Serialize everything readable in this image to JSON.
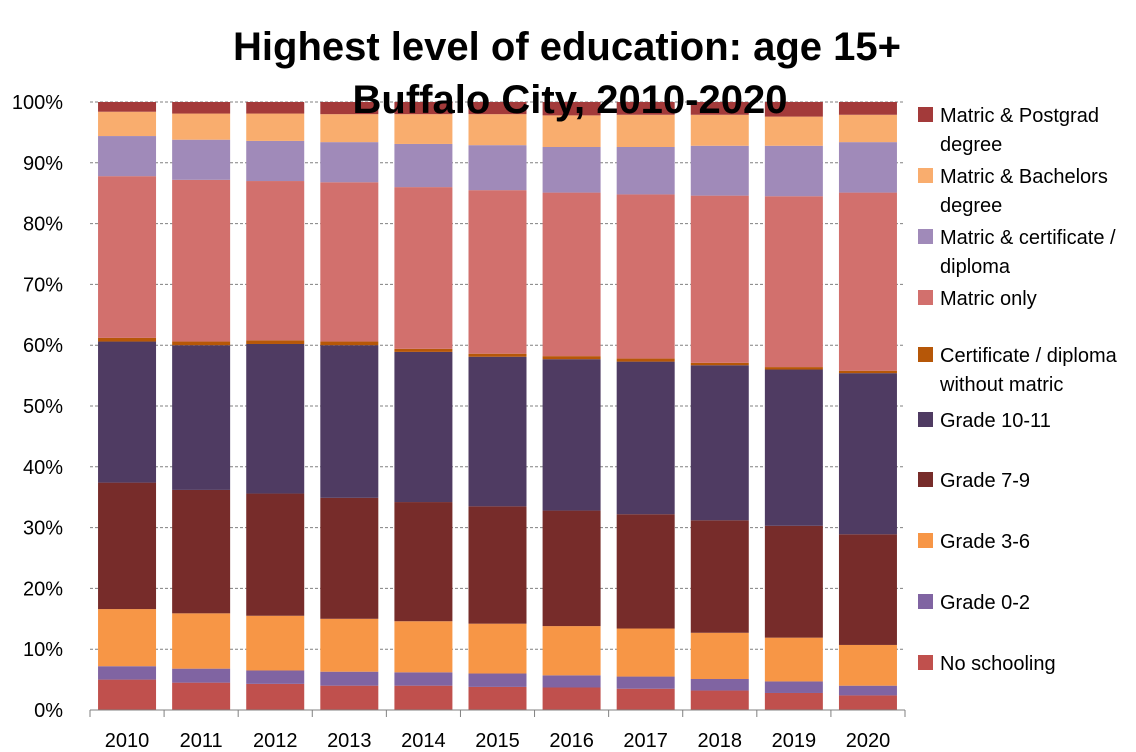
{
  "chart_data": {
    "type": "bar",
    "stacked": true,
    "percent": true,
    "title": "Highest level of education: age 15+",
    "subtitle": "Buffalo City, 2010-2020",
    "xlabel": "",
    "ylabel": "",
    "ylim": [
      0,
      100
    ],
    "y_ticks": [
      "0%",
      "10%",
      "20%",
      "30%",
      "40%",
      "50%",
      "60%",
      "70%",
      "80%",
      "90%",
      "100%"
    ],
    "grid": "horizontal dashed",
    "legend_position": "right",
    "categories": [
      "2010",
      "2011",
      "2012",
      "2013",
      "2014",
      "2015",
      "2016",
      "2017",
      "2018",
      "2019",
      "2020"
    ],
    "series": [
      {
        "name": "No schooling",
        "color": "#C0504D",
        "values": [
          5.0,
          4.5,
          4.3,
          4.0,
          4.0,
          3.8,
          3.7,
          3.5,
          3.2,
          2.8,
          2.4
        ]
      },
      {
        "name": "Grade 0-2",
        "color": "#8064A2",
        "values": [
          2.2,
          2.3,
          2.2,
          2.3,
          2.2,
          2.2,
          2.0,
          2.0,
          1.9,
          1.9,
          1.6
        ]
      },
      {
        "name": "Grade 3-6",
        "color": "#F79646",
        "values": [
          9.4,
          9.1,
          9.0,
          8.7,
          8.4,
          8.2,
          8.1,
          7.9,
          7.6,
          7.2,
          6.7
        ]
      },
      {
        "name": "Grade 7-9",
        "color": "#772C2A",
        "values": [
          20.8,
          20.3,
          20.1,
          19.9,
          19.6,
          19.3,
          19.0,
          18.8,
          18.5,
          18.4,
          18.2
        ]
      },
      {
        "name": "Grade 10-11",
        "color": "#4F3B62",
        "values": [
          23.2,
          23.8,
          24.6,
          25.1,
          24.7,
          24.6,
          24.9,
          25.1,
          25.5,
          25.7,
          26.5
        ]
      },
      {
        "name": "Certificate / diploma without matric",
        "color": "#B65708",
        "values": [
          0.6,
          0.6,
          0.6,
          0.6,
          0.5,
          0.5,
          0.5,
          0.5,
          0.4,
          0.4,
          0.4
        ]
      },
      {
        "name": "Matric only",
        "color": "#D2706D",
        "values": [
          26.6,
          26.6,
          26.2,
          26.2,
          26.6,
          26.9,
          26.9,
          27.0,
          27.5,
          28.1,
          29.3
        ]
      },
      {
        "name": "Matric & certificate / diploma",
        "color": "#A08AB9",
        "values": [
          6.6,
          6.6,
          6.6,
          6.6,
          7.1,
          7.4,
          7.5,
          7.8,
          8.2,
          8.3,
          8.3
        ]
      },
      {
        "name": "Matric & Bachelors degree",
        "color": "#F9AD6E",
        "values": [
          4.0,
          4.3,
          4.5,
          4.6,
          4.9,
          5.1,
          5.2,
          5.3,
          5.1,
          4.8,
          4.5
        ]
      },
      {
        "name": "Matric & Postgrad degree",
        "color": "#A33A3A",
        "values": [
          1.6,
          1.9,
          1.9,
          2.0,
          2.0,
          2.0,
          2.2,
          2.1,
          2.1,
          2.4,
          2.1
        ]
      }
    ],
    "legend": [
      {
        "lines": [
          "Matric & Postgrad",
          "degree"
        ],
        "color": "#A33A3A"
      },
      {
        "lines": [
          "Matric & Bachelors",
          "degree"
        ],
        "color": "#F9AD6E"
      },
      {
        "lines": [
          "Matric & certificate /",
          "diploma"
        ],
        "color": "#A08AB9"
      },
      {
        "lines": [
          "Matric only"
        ],
        "color": "#D2706D"
      },
      {
        "lines": [
          "Certificate / diploma",
          "without matric"
        ],
        "color": "#B65708"
      },
      {
        "lines": [
          "Grade 10-11"
        ],
        "color": "#4F3B62"
      },
      {
        "lines": [
          "Grade 7-9"
        ],
        "color": "#772C2A"
      },
      {
        "lines": [
          "Grade 3-6"
        ],
        "color": "#F79646"
      },
      {
        "lines": [
          "Grade 0-2"
        ],
        "color": "#8064A2"
      },
      {
        "lines": [
          "No schooling"
        ],
        "color": "#C0504D"
      }
    ]
  }
}
